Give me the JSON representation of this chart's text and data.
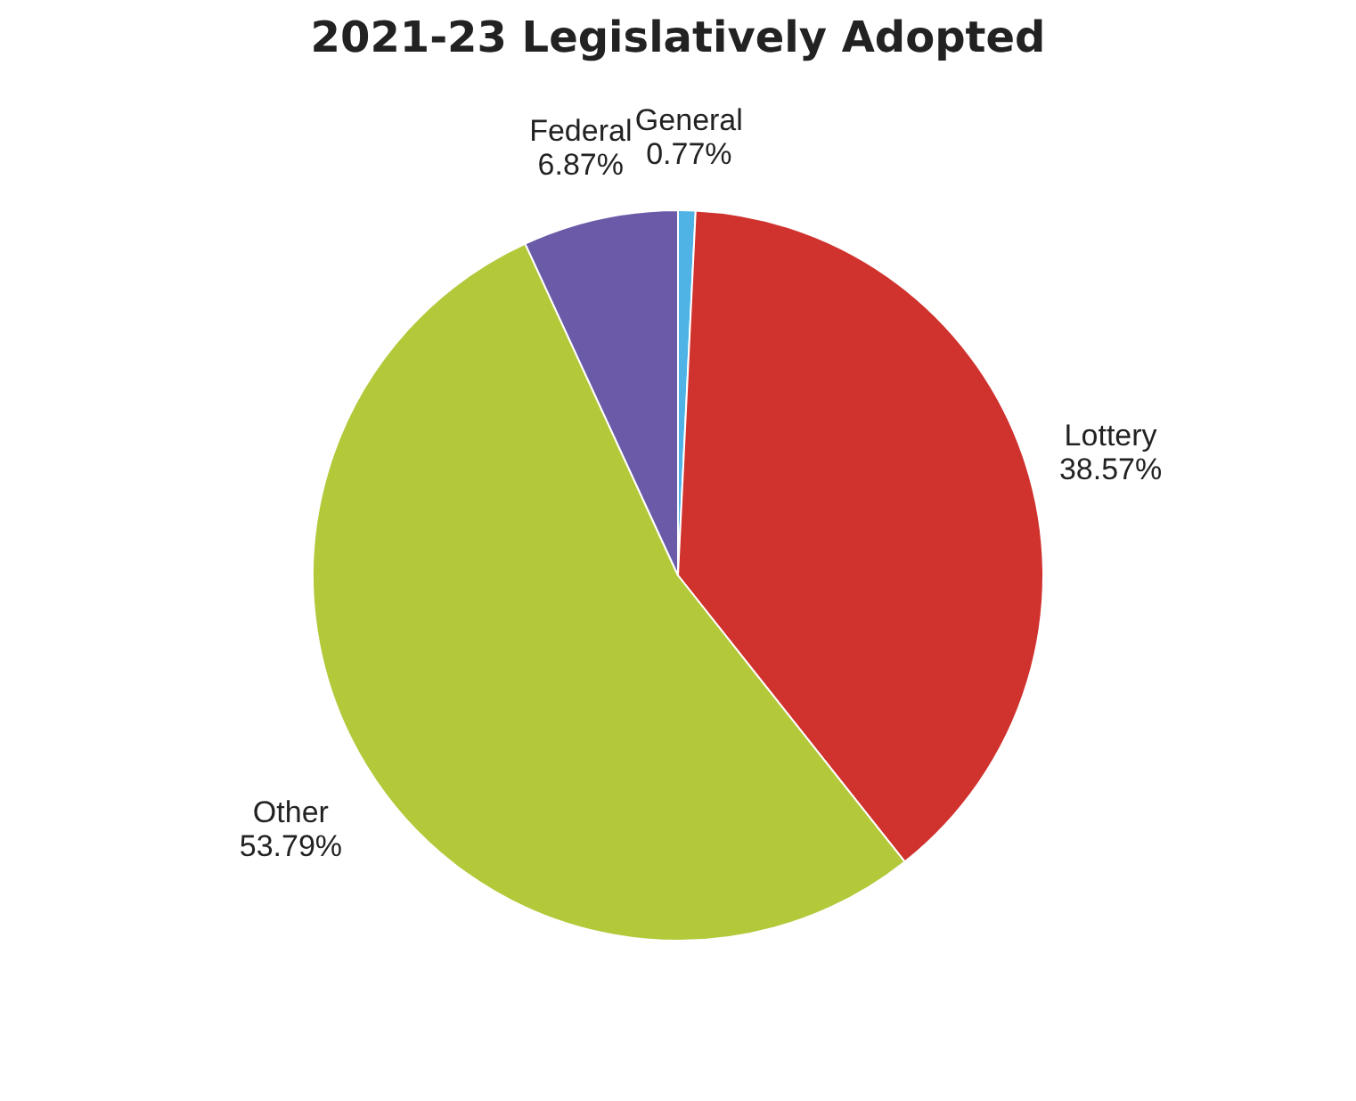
{
  "chart_data": {
    "type": "pie",
    "title": "2021-23 Legislatively Adopted",
    "categories": [
      "General",
      "Lottery",
      "Other",
      "Federal"
    ],
    "values": [
      0.77,
      38.57,
      53.79,
      6.87
    ],
    "value_labels": [
      "0.77%",
      "38.57%",
      "53.79%",
      "6.87%"
    ],
    "colors": [
      "#4fb3e6",
      "#d0322e",
      "#b3c93a",
      "#6a5aa8"
    ]
  }
}
